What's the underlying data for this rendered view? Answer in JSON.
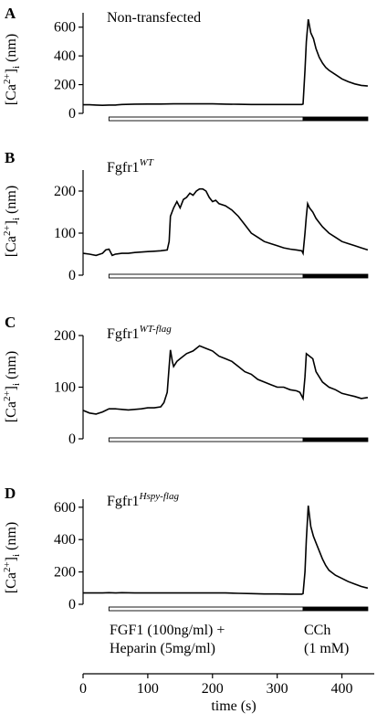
{
  "figure": {
    "time_axis": {
      "label": "time (s)",
      "ticks": [
        0,
        100,
        200,
        300,
        400
      ],
      "xlim": [
        0,
        450
      ]
    },
    "treatment_labels": {
      "fgf1_line1": "FGF1 (100ng/ml) +",
      "fgf1_line2": "Heparin (5mg/ml)",
      "cch_line1": "CCh",
      "cch_line2": "(1 mM)"
    },
    "treatment_bars": {
      "fgf1": {
        "start": 40,
        "end": 340
      },
      "cch": {
        "start": 340,
        "end": 440
      }
    }
  },
  "chart_data": [
    {
      "type": "line",
      "panel": "A",
      "title_base": "Non-transfected",
      "title_sup": "",
      "ylabel_main": "[Ca",
      "ylabel_sup": "2+",
      "ylabel_bracket": "]",
      "ylabel_sub": "i",
      "ylabel_unit": " (nm)",
      "yticks": [
        0,
        200,
        400,
        600
      ],
      "ylim": [
        0,
        700
      ],
      "xlim": [
        0,
        450
      ],
      "series": [
        {
          "x": [
            0,
            10,
            20,
            30,
            40,
            50,
            60,
            80,
            100,
            120,
            140,
            160,
            180,
            200,
            220,
            240,
            260,
            280,
            300,
            320,
            338,
            340,
            343,
            345,
            348,
            352,
            356,
            360,
            365,
            370,
            375,
            380,
            390,
            400,
            410,
            420,
            430,
            440
          ],
          "y": [
            60,
            60,
            58,
            56,
            58,
            58,
            62,
            64,
            65,
            65,
            66,
            66,
            66,
            66,
            64,
            63,
            62,
            62,
            62,
            62,
            62,
            65,
            300,
            500,
            655,
            560,
            520,
            450,
            390,
            350,
            320,
            300,
            270,
            240,
            220,
            205,
            195,
            190
          ]
        }
      ]
    },
    {
      "type": "line",
      "panel": "B",
      "title_base": "Fgfr1",
      "title_sup": "WT",
      "ylabel_main": "[Ca",
      "ylabel_sup": "2+",
      "ylabel_bracket": "]",
      "ylabel_sub": "i",
      "ylabel_unit": " (nm)",
      "yticks": [
        0,
        100,
        200
      ],
      "ylim": [
        0,
        250
      ],
      "xlim": [
        0,
        450
      ],
      "series": [
        {
          "x": [
            0,
            10,
            20,
            30,
            35,
            40,
            45,
            50,
            60,
            70,
            80,
            90,
            100,
            110,
            120,
            130,
            133,
            135,
            140,
            145,
            150,
            155,
            160,
            165,
            170,
            175,
            180,
            185,
            190,
            195,
            200,
            205,
            210,
            220,
            230,
            240,
            250,
            260,
            270,
            280,
            290,
            300,
            310,
            320,
            330,
            338,
            340,
            343,
            345,
            347,
            350,
            355,
            360,
            365,
            370,
            380,
            390,
            400,
            410,
            420,
            430,
            440
          ],
          "y": [
            52,
            50,
            47,
            52,
            60,
            62,
            47,
            50,
            52,
            52,
            54,
            55,
            56,
            57,
            58,
            60,
            80,
            140,
            160,
            175,
            160,
            180,
            185,
            195,
            190,
            200,
            205,
            205,
            200,
            185,
            175,
            178,
            170,
            165,
            155,
            140,
            120,
            100,
            90,
            80,
            75,
            70,
            65,
            62,
            60,
            58,
            52,
            100,
            140,
            170,
            160,
            150,
            135,
            125,
            115,
            100,
            90,
            80,
            75,
            70,
            65,
            60
          ]
        }
      ]
    },
    {
      "type": "line",
      "panel": "C",
      "title_base": "Fgfr1",
      "title_sup": "WT-flag",
      "ylabel_main": "[Ca",
      "ylabel_sup": "2+",
      "ylabel_bracket": "]",
      "ylabel_sub": "i",
      "ylabel_unit": " (nm)",
      "yticks": [
        0,
        100,
        200
      ],
      "ylim": [
        0,
        200
      ],
      "xlim": [
        0,
        450
      ],
      "series": [
        {
          "x": [
            0,
            10,
            20,
            30,
            40,
            50,
            60,
            70,
            80,
            90,
            100,
            110,
            120,
            125,
            130,
            133,
            135,
            138,
            140,
            145,
            150,
            160,
            170,
            180,
            190,
            200,
            210,
            220,
            230,
            240,
            250,
            260,
            270,
            280,
            290,
            300,
            310,
            320,
            330,
            335,
            340,
            343,
            345,
            350,
            355,
            360,
            365,
            370,
            380,
            390,
            400,
            410,
            420,
            430,
            440
          ],
          "y": [
            55,
            50,
            48,
            52,
            58,
            58,
            57,
            56,
            57,
            58,
            60,
            60,
            62,
            70,
            90,
            140,
            172,
            150,
            140,
            150,
            155,
            165,
            170,
            180,
            175,
            170,
            160,
            155,
            150,
            140,
            130,
            125,
            115,
            110,
            105,
            100,
            100,
            95,
            93,
            90,
            78,
            120,
            165,
            160,
            155,
            130,
            120,
            110,
            100,
            95,
            88,
            85,
            82,
            78,
            80
          ]
        }
      ]
    },
    {
      "type": "line",
      "panel": "D",
      "title_base": "Fgfr1",
      "title_sup": "Hspy-flag",
      "ylabel_main": "[Ca",
      "ylabel_sup": "2+",
      "ylabel_bracket": "]",
      "ylabel_sub": "i",
      "ylabel_unit": " (nm)",
      "yticks": [
        0,
        200,
        400,
        600
      ],
      "ylim": [
        0,
        650
      ],
      "xlim": [
        0,
        450
      ],
      "series": [
        {
          "x": [
            0,
            10,
            20,
            30,
            40,
            50,
            60,
            80,
            100,
            120,
            140,
            160,
            180,
            200,
            220,
            240,
            260,
            280,
            300,
            320,
            338,
            340,
            343,
            345,
            348,
            352,
            356,
            360,
            365,
            370,
            375,
            380,
            390,
            400,
            410,
            420,
            430,
            440
          ],
          "y": [
            70,
            70,
            70,
            70,
            72,
            70,
            72,
            70,
            70,
            70,
            70,
            70,
            70,
            70,
            70,
            68,
            66,
            64,
            64,
            63,
            63,
            66,
            200,
            400,
            610,
            480,
            420,
            380,
            330,
            280,
            240,
            210,
            180,
            160,
            140,
            125,
            110,
            100
          ]
        }
      ]
    }
  ]
}
